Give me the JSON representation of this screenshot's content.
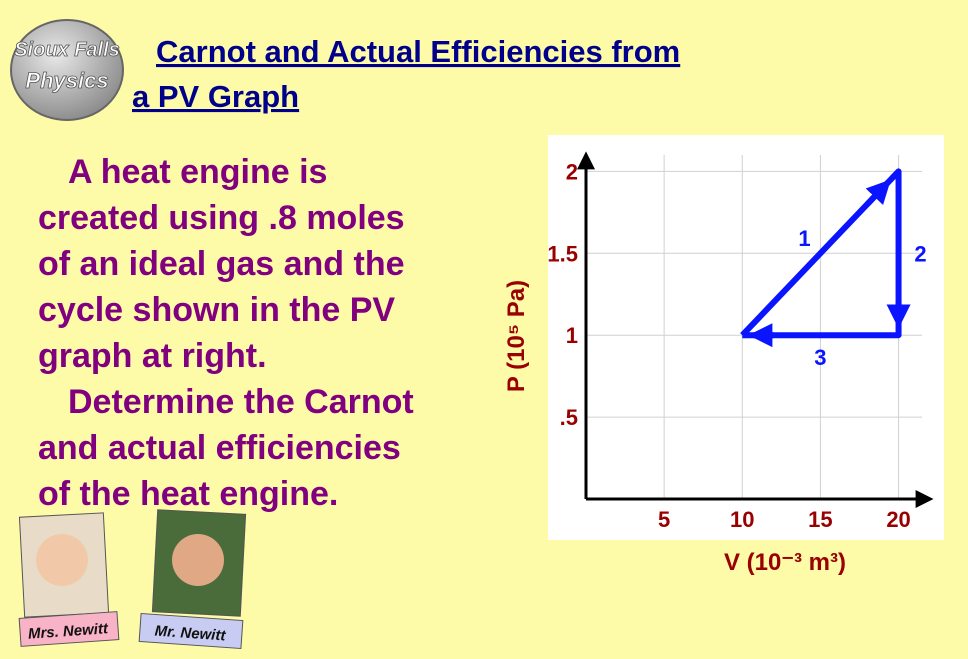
{
  "logo": [
    "Sioux Falls",
    "Physics"
  ],
  "title": [
    "Carnot and Actual Efficiencies from",
    "a PV Graph"
  ],
  "body": [
    "A heat engine is",
    "created using .8 moles",
    "of an ideal gas and the",
    "cycle shown in the PV",
    "graph at right.",
    "Determine the Carnot",
    "and actual efficiencies",
    "of the heat engine."
  ],
  "teachers": [
    "Mrs. Newitt",
    "Mr. Newitt"
  ],
  "chart_data": {
    "type": "line",
    "xlabel": "V (10⁻³ m³)",
    "ylabel": "P (10⁵ Pa)",
    "x": [
      10,
      20,
      20,
      10
    ],
    "values": [
      1,
      2,
      1,
      1
    ],
    "segment_labels": [
      "1",
      "2",
      "3"
    ],
    "color": "#0a14ff",
    "xlim": [
      0,
      21.5
    ],
    "ylim": [
      0,
      2.1
    ],
    "xticks": [
      5,
      10,
      15,
      20
    ],
    "yticks": [
      {
        "value": 0.5,
        "label": ".5"
      },
      1,
      1.5,
      2
    ],
    "grid": true
  }
}
